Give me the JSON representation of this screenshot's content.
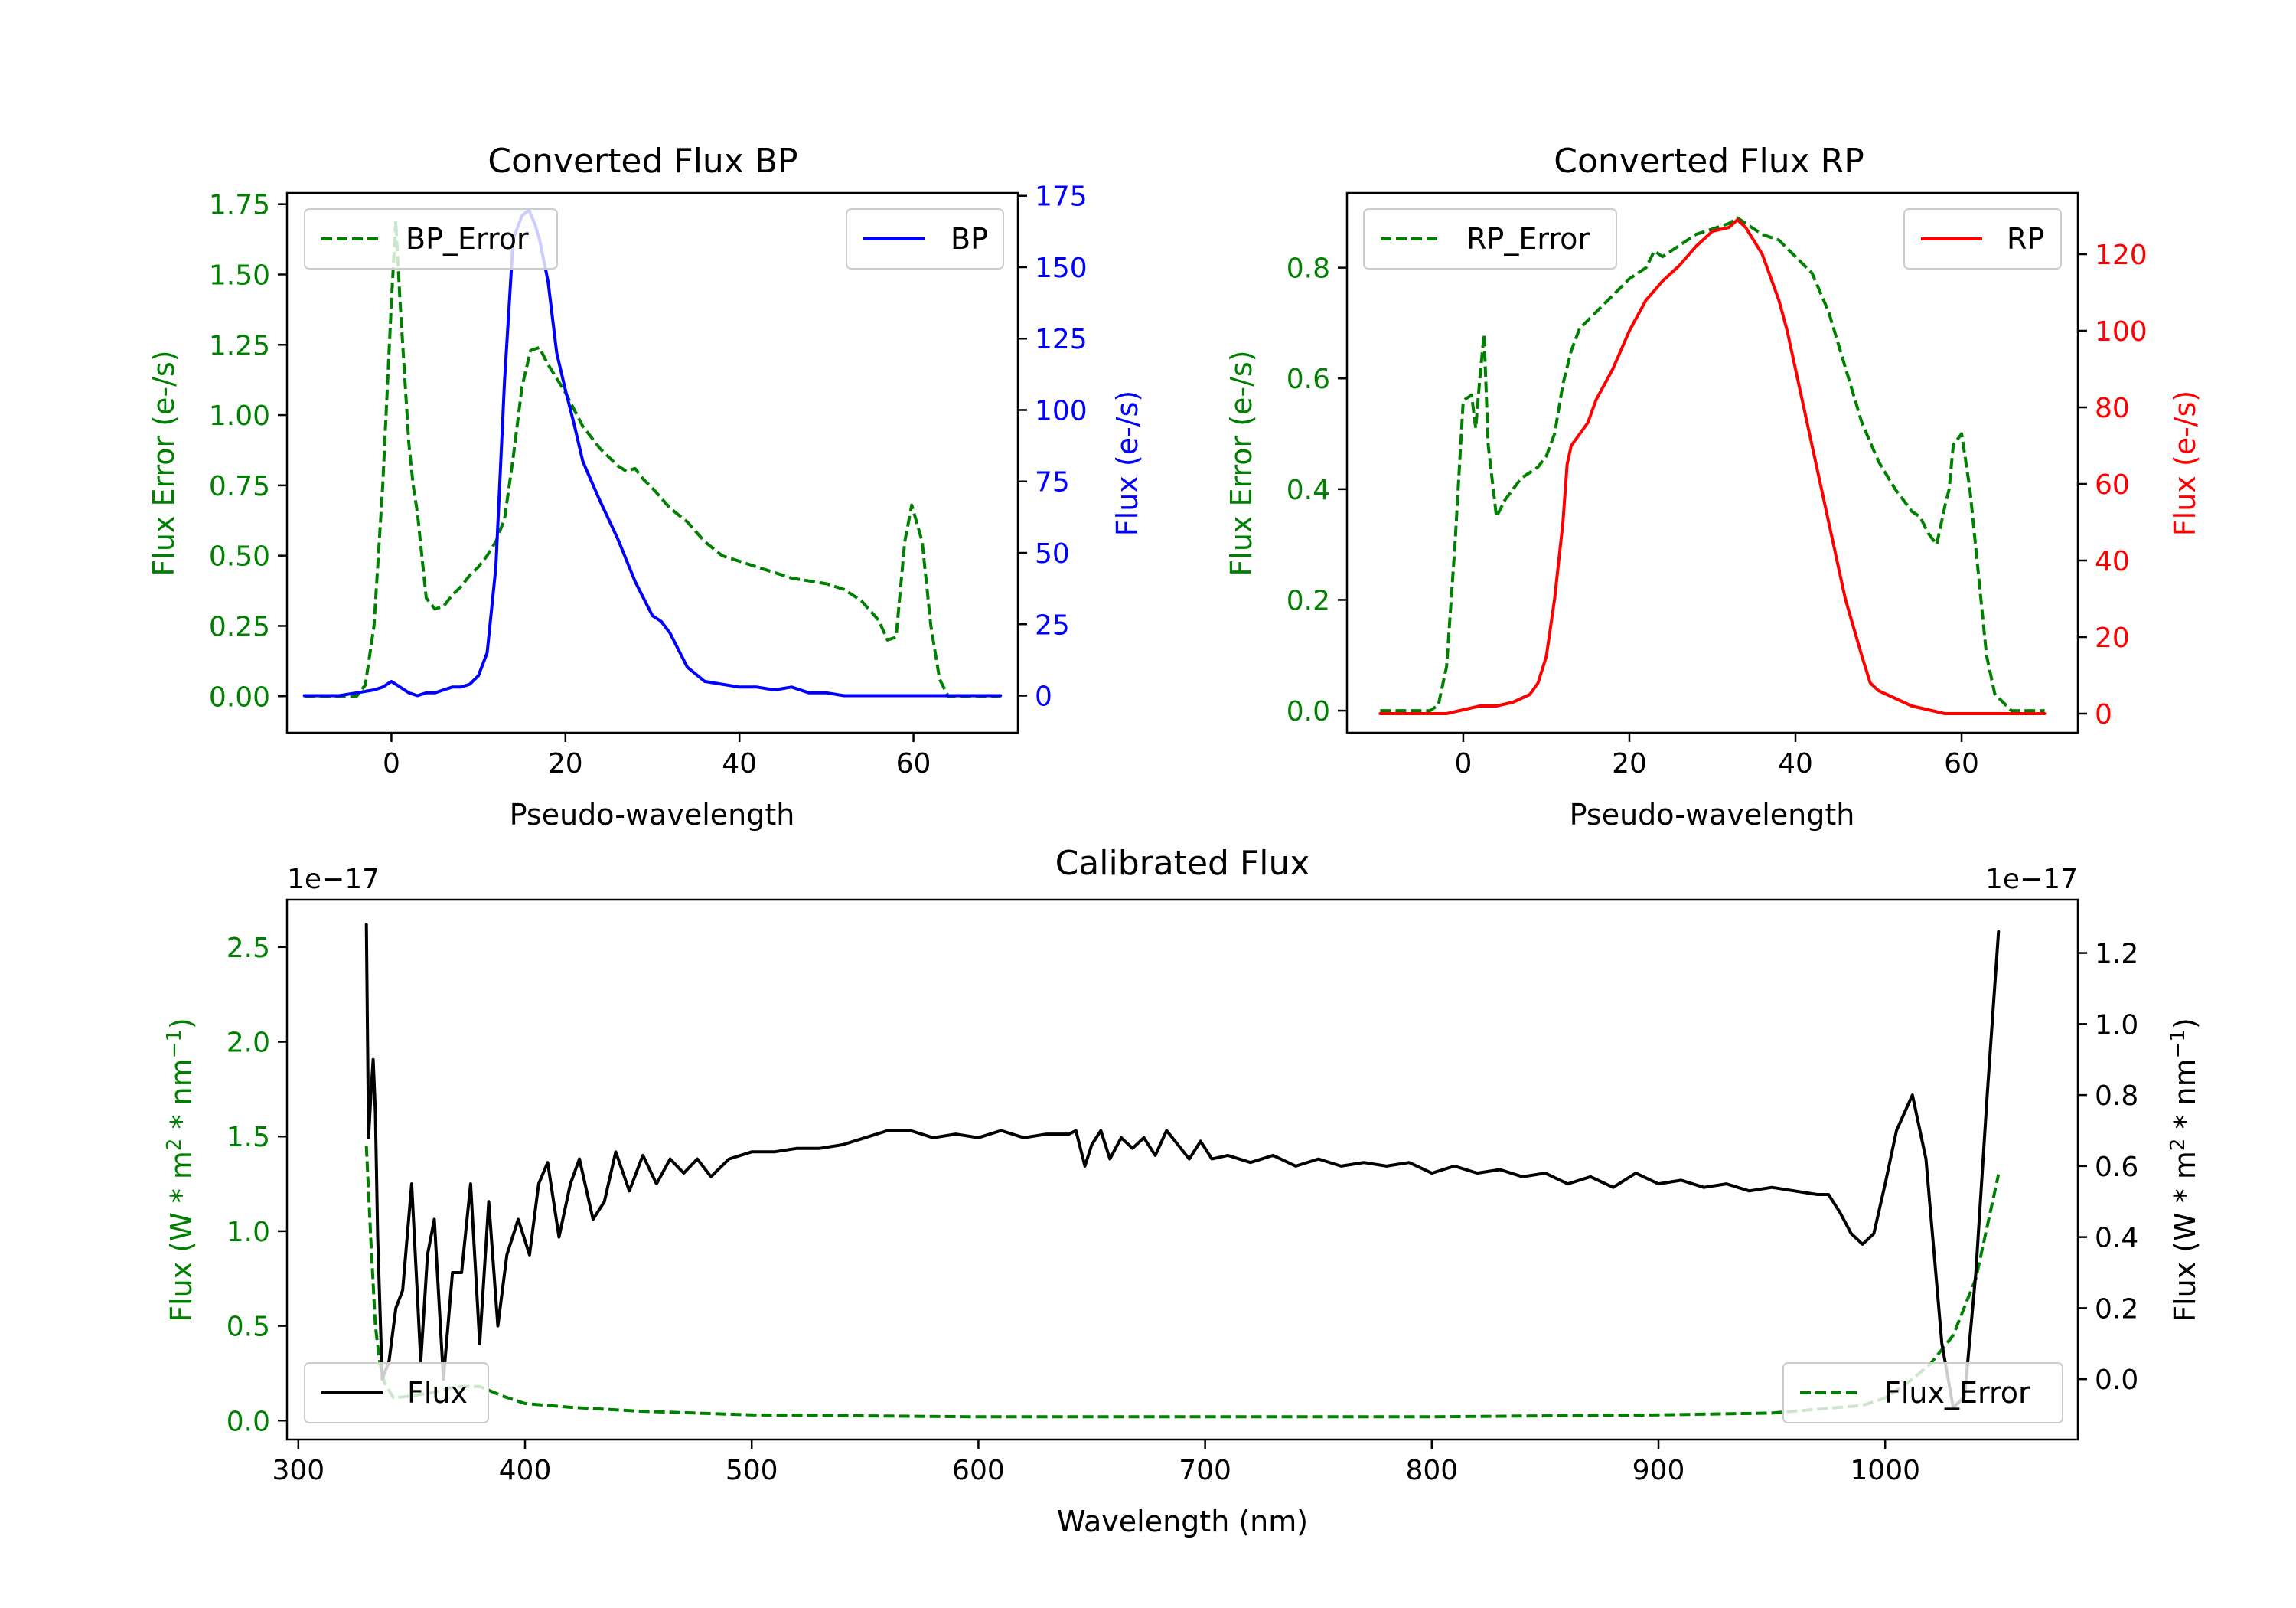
{
  "colors": {
    "bp": "#0000ff",
    "rp": "#ff0000",
    "error": "#008000",
    "flux": "#000000",
    "axis": "#000000"
  },
  "chart_data": [
    {
      "id": "bp",
      "type": "line",
      "title": "Converted Flux BP",
      "xlabel": "Pseudo-wavelength",
      "ylabel_left": "Flux Error (e-/s)",
      "ylabel_right": "Flux (e-/s)",
      "xlim": [
        -12,
        72
      ],
      "ylim_left": [
        -0.13,
        1.79
      ],
      "ylim_right": [
        -13,
        176
      ],
      "xticks": [
        0,
        20,
        40,
        60
      ],
      "xtick_labels": [
        "0",
        "20",
        "40",
        "60"
      ],
      "yticks_left": [
        0,
        0.25,
        0.5,
        0.75,
        1.0,
        1.25,
        1.5,
        1.75
      ],
      "ytick_labels_left": [
        "0.00",
        "0.25",
        "0.50",
        "0.75",
        "1.00",
        "1.25",
        "1.50",
        "1.75"
      ],
      "yticks_right": [
        0,
        25,
        50,
        75,
        100,
        125,
        150,
        175
      ],
      "ytick_labels_right": [
        "0",
        "25",
        "50",
        "75",
        "100",
        "125",
        "150",
        "175"
      ],
      "legend_left": "top-left",
      "legend_right": "top-right",
      "series": [
        {
          "name": "BP_Error",
          "axis": "left",
          "style": "dashed",
          "color": "#008000",
          "x": [
            -10,
            -4,
            -3,
            -2,
            -1,
            0,
            0.5,
            1,
            2,
            2.5,
            3,
            4,
            5,
            6,
            7,
            8,
            9,
            10,
            11,
            12,
            13,
            14,
            15,
            16,
            17,
            18,
            20,
            22,
            24,
            26,
            27,
            28,
            29,
            30,
            32,
            34,
            36,
            38,
            40,
            42,
            44,
            46,
            48,
            50,
            52,
            54,
            56,
            57,
            58,
            59,
            59.8,
            61,
            62,
            63,
            64,
            66,
            70
          ],
          "values": [
            0,
            0,
            0.04,
            0.25,
            0.75,
            1.4,
            1.69,
            1.4,
            0.9,
            0.75,
            0.65,
            0.35,
            0.31,
            0.32,
            0.36,
            0.39,
            0.43,
            0.46,
            0.5,
            0.55,
            0.63,
            0.85,
            1.1,
            1.23,
            1.24,
            1.18,
            1.08,
            0.96,
            0.88,
            0.82,
            0.8,
            0.81,
            0.77,
            0.74,
            0.67,
            0.62,
            0.55,
            0.5,
            0.48,
            0.46,
            0.44,
            0.42,
            0.41,
            0.4,
            0.38,
            0.34,
            0.27,
            0.2,
            0.21,
            0.55,
            0.68,
            0.55,
            0.25,
            0.06,
            0,
            0,
            0
          ]
        },
        {
          "name": "BP",
          "axis": "right",
          "style": "solid",
          "color": "#0000ff",
          "x": [
            -10,
            -6,
            -4,
            -2,
            -1,
            0,
            1,
            2,
            3,
            4,
            5,
            6,
            7,
            8,
            9,
            10,
            11,
            12,
            13,
            14,
            15,
            15.8,
            16.5,
            17,
            18,
            19,
            20,
            21,
            22,
            24,
            26,
            28,
            30,
            31,
            32,
            34,
            36,
            38,
            40,
            42,
            44,
            46,
            48,
            50,
            52,
            55,
            60,
            65,
            70
          ],
          "values": [
            0,
            0,
            1,
            2,
            3,
            5,
            3,
            1,
            0,
            1,
            1,
            2,
            3,
            3,
            4,
            7,
            15,
            45,
            110,
            160,
            168,
            170,
            165,
            160,
            145,
            120,
            107,
            95,
            82,
            68,
            55,
            40,
            28,
            26,
            22,
            10,
            5,
            4,
            3,
            3,
            2,
            3,
            1,
            1,
            0,
            0,
            0,
            0,
            0
          ]
        }
      ]
    },
    {
      "id": "rp",
      "type": "line",
      "title": "Converted Flux RP",
      "xlabel": "Pseudo-wavelength",
      "ylabel_left": "Flux Error (e-/s)",
      "ylabel_right": "Flux (e-/s)",
      "xlim": [
        -14,
        74
      ],
      "ylim_left": [
        -0.04,
        0.935
      ],
      "ylim_right": [
        -5,
        136
      ],
      "xticks": [
        0,
        20,
        40,
        60
      ],
      "xtick_labels": [
        "0",
        "20",
        "40",
        "60"
      ],
      "yticks_left": [
        0,
        0.2,
        0.4,
        0.6,
        0.8
      ],
      "ytick_labels_left": [
        "0.0",
        "0.2",
        "0.4",
        "0.6",
        "0.8"
      ],
      "yticks_right": [
        0,
        20,
        40,
        60,
        80,
        100,
        120
      ],
      "ytick_labels_right": [
        "0",
        "20",
        "40",
        "60",
        "80",
        "100",
        "120"
      ],
      "legend_left": "top-left",
      "legend_right": "top-right",
      "series": [
        {
          "name": "RP_Error",
          "axis": "left",
          "style": "dashed",
          "color": "#008000",
          "x": [
            -10,
            -4,
            -3,
            -2,
            -1,
            0,
            1,
            1.5,
            2,
            2.5,
            3,
            4,
            5,
            6,
            7,
            8,
            9,
            10,
            11,
            12,
            13,
            14,
            16,
            18,
            20,
            22,
            23,
            24,
            26,
            28,
            30,
            32,
            33,
            34,
            36,
            38,
            40,
            42,
            44,
            46,
            48,
            50,
            52,
            54,
            55,
            56,
            57,
            58,
            58.5,
            59,
            60,
            61,
            62,
            63,
            64,
            66,
            70
          ],
          "values": [
            0,
            0,
            0.01,
            0.08,
            0.3,
            0.56,
            0.57,
            0.51,
            0.6,
            0.68,
            0.48,
            0.35,
            0.38,
            0.4,
            0.42,
            0.43,
            0.44,
            0.46,
            0.5,
            0.59,
            0.65,
            0.69,
            0.72,
            0.75,
            0.78,
            0.8,
            0.83,
            0.82,
            0.84,
            0.86,
            0.87,
            0.88,
            0.89,
            0.88,
            0.86,
            0.85,
            0.82,
            0.79,
            0.72,
            0.62,
            0.52,
            0.45,
            0.4,
            0.36,
            0.35,
            0.32,
            0.3,
            0.37,
            0.4,
            0.48,
            0.5,
            0.4,
            0.25,
            0.1,
            0.03,
            0,
            0
          ]
        },
        {
          "name": "RP",
          "axis": "right",
          "style": "solid",
          "color": "#ff0000",
          "x": [
            -10,
            -4,
            -2,
            0,
            2,
            4,
            6,
            8,
            9,
            10,
            11,
            12,
            12.5,
            13,
            14,
            15,
            16,
            18,
            20,
            22,
            24,
            26,
            28,
            30,
            32,
            33,
            34,
            36,
            38,
            39,
            40,
            42,
            44,
            46,
            48,
            49,
            50,
            52,
            54,
            56,
            58,
            60,
            65,
            70
          ],
          "values": [
            0,
            0,
            0,
            1,
            2,
            2,
            3,
            5,
            8,
            15,
            30,
            50,
            65,
            70,
            73,
            76,
            82,
            90,
            100,
            108,
            113,
            117,
            122,
            126,
            127,
            129,
            127,
            120,
            108,
            100,
            90,
            70,
            50,
            30,
            15,
            8,
            6,
            4,
            2,
            1,
            0,
            0,
            0,
            0
          ]
        }
      ]
    },
    {
      "id": "cal",
      "type": "line",
      "title": "Calibrated Flux",
      "xlabel": "Wavelength (nm)",
      "ylabel_left": "Flux (W * m^2 * nm^-1)",
      "ylabel_right": "Flux (W * m^2 * nm^-1)",
      "offset_left": "1e−17",
      "offset_right": "1e−17",
      "xlim": [
        295,
        1085
      ],
      "ylim_left": [
        -0.1,
        2.75
      ],
      "ylim_right": [
        -0.17,
        1.35
      ],
      "xticks": [
        300,
        400,
        500,
        600,
        700,
        800,
        900,
        1000
      ],
      "xtick_labels": [
        "300",
        "400",
        "500",
        "600",
        "700",
        "800",
        "900",
        "1000"
      ],
      "yticks_left": [
        0,
        0.5,
        1.0,
        1.5,
        2.0,
        2.5
      ],
      "ytick_labels_left": [
        "0.0",
        "0.5",
        "1.0",
        "1.5",
        "2.0",
        "2.5"
      ],
      "yticks_right": [
        0,
        0.2,
        0.4,
        0.6,
        0.8,
        1.0,
        1.2
      ],
      "ytick_labels_right": [
        "0.0",
        "0.2",
        "0.4",
        "0.6",
        "0.8",
        "1.0",
        "1.2"
      ],
      "legend_left": "bottom-left",
      "legend_right": "bottom-right",
      "series": [
        {
          "name": "Flux_Error",
          "axis": "left",
          "style": "dashed",
          "color": "#008000",
          "x": [
            330,
            332,
            334,
            336,
            338,
            342,
            350,
            360,
            370,
            380,
            390,
            400,
            420,
            450,
            500,
            600,
            700,
            800,
            900,
            950,
            990,
            1000,
            1010,
            1020,
            1030,
            1040,
            1050
          ],
          "values": [
            1.45,
            0.95,
            0.5,
            0.3,
            0.2,
            0.12,
            0.13,
            0.15,
            0.18,
            0.18,
            0.13,
            0.09,
            0.07,
            0.05,
            0.03,
            0.02,
            0.02,
            0.02,
            0.03,
            0.04,
            0.08,
            0.12,
            0.2,
            0.3,
            0.45,
            0.75,
            1.3
          ]
        },
        {
          "name": "Flux",
          "axis": "right",
          "style": "solid",
          "color": "#000000",
          "x": [
            330,
            331,
            332,
            333,
            334,
            335,
            337,
            340,
            343,
            346,
            350,
            354,
            357,
            360,
            364,
            368,
            372,
            376,
            380,
            384,
            388,
            392,
            397,
            402,
            406,
            410,
            415,
            420,
            424,
            430,
            435,
            440,
            446,
            452,
            458,
            464,
            470,
            476,
            482,
            490,
            500,
            510,
            520,
            530,
            540,
            550,
            560,
            570,
            580,
            590,
            600,
            610,
            620,
            630,
            640,
            643,
            647,
            650,
            654,
            658,
            663,
            668,
            673,
            678,
            683,
            688,
            693,
            698,
            703,
            710,
            720,
            730,
            740,
            750,
            760,
            770,
            780,
            790,
            800,
            810,
            820,
            830,
            840,
            850,
            860,
            870,
            880,
            890,
            900,
            910,
            920,
            930,
            940,
            950,
            960,
            970,
            975,
            980,
            985,
            990,
            995,
            1000,
            1005,
            1012,
            1018,
            1025,
            1030,
            1035,
            1040,
            1045,
            1050
          ],
          "values": [
            1.28,
            0.68,
            0.8,
            0.9,
            0.75,
            0.4,
            0.0,
            0.05,
            0.2,
            0.25,
            0.55,
            0.05,
            0.35,
            0.45,
            0.0,
            0.3,
            0.3,
            0.55,
            0.1,
            0.5,
            0.15,
            0.35,
            0.45,
            0.35,
            0.55,
            0.61,
            0.4,
            0.55,
            0.62,
            0.45,
            0.5,
            0.64,
            0.53,
            0.63,
            0.55,
            0.62,
            0.58,
            0.62,
            0.57,
            0.62,
            0.64,
            0.64,
            0.65,
            0.65,
            0.66,
            0.68,
            0.7,
            0.7,
            0.68,
            0.69,
            0.68,
            0.7,
            0.68,
            0.69,
            0.69,
            0.7,
            0.6,
            0.66,
            0.7,
            0.62,
            0.68,
            0.65,
            0.68,
            0.63,
            0.7,
            0.66,
            0.62,
            0.67,
            0.62,
            0.63,
            0.61,
            0.63,
            0.6,
            0.62,
            0.6,
            0.61,
            0.6,
            0.61,
            0.58,
            0.6,
            0.58,
            0.59,
            0.57,
            0.58,
            0.55,
            0.57,
            0.54,
            0.58,
            0.55,
            0.56,
            0.54,
            0.55,
            0.53,
            0.54,
            0.53,
            0.52,
            0.52,
            0.47,
            0.41,
            0.38,
            0.41,
            0.55,
            0.7,
            0.8,
            0.62,
            0.1,
            -0.08,
            -0.05,
            0.3,
            0.8,
            1.26
          ]
        }
      ]
    }
  ]
}
